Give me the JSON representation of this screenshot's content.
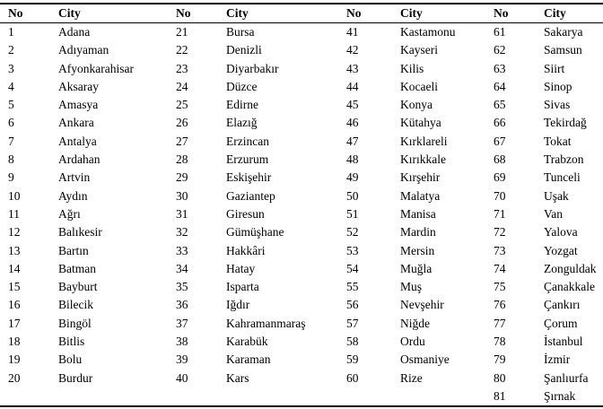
{
  "table": {
    "column_headers": [
      "No",
      "City",
      "No",
      "City",
      "No",
      "City",
      "No",
      "City"
    ],
    "rows": [
      [
        "1",
        "Adana",
        "21",
        "Bursa",
        "41",
        "Kastamonu",
        "61",
        "Sakarya"
      ],
      [
        "2",
        "Adıyaman",
        "22",
        "Denizli",
        "42",
        "Kayseri",
        "62",
        "Samsun"
      ],
      [
        "3",
        "Afyonkarahisar",
        "23",
        "Diyarbakır",
        "43",
        "Kilis",
        "63",
        "Siirt"
      ],
      [
        "4",
        "Aksaray",
        "24",
        "Düzce",
        "44",
        "Kocaeli",
        "64",
        "Sinop"
      ],
      [
        "5",
        "Amasya",
        "25",
        "Edirne",
        "45",
        "Konya",
        "65",
        "Sivas"
      ],
      [
        "6",
        "Ankara",
        "26",
        "Elazığ",
        "46",
        "Kütahya",
        "66",
        "Tekirdağ"
      ],
      [
        "7",
        "Antalya",
        "27",
        "Erzincan",
        "47",
        "Kırklareli",
        "67",
        "Tokat"
      ],
      [
        "8",
        "Ardahan",
        "28",
        "Erzurum",
        "48",
        "Kırıkkale",
        "68",
        "Trabzon"
      ],
      [
        "9",
        "Artvin",
        "29",
        "Eskişehir",
        "49",
        "Kırşehir",
        "69",
        "Tunceli"
      ],
      [
        "10",
        "Aydın",
        "30",
        "Gaziantep",
        "50",
        "Malatya",
        "70",
        "Uşak"
      ],
      [
        "11",
        "Ağrı",
        "31",
        "Giresun",
        "51",
        "Manisa",
        "71",
        "Van"
      ],
      [
        "12",
        "Balıkesir",
        "32",
        "Gümüşhane",
        "52",
        "Mardin",
        "72",
        "Yalova"
      ],
      [
        "13",
        "Bartın",
        "33",
        "Hakkâri",
        "53",
        "Mersin",
        "73",
        "Yozgat"
      ],
      [
        "14",
        "Batman",
        "34",
        "Hatay",
        "54",
        "Muğla",
        "74",
        "Zonguldak"
      ],
      [
        "15",
        "Bayburt",
        "35",
        "Isparta",
        "55",
        "Muş",
        "75",
        "Çanakkale"
      ],
      [
        "16",
        "Bilecik",
        "36",
        "Iğdır",
        "56",
        "Nevşehir",
        "76",
        "Çankırı"
      ],
      [
        "17",
        "Bingöl",
        "37",
        "Kahramanmaraş",
        "57",
        "Niğde",
        "77",
        "Çorum"
      ],
      [
        "18",
        "Bitlis",
        "38",
        "Karabük",
        "58",
        "Ordu",
        "78",
        "İstanbul"
      ],
      [
        "19",
        "Bolu",
        "39",
        "Karaman",
        "59",
        "Osmaniye",
        "79",
        "İzmir"
      ],
      [
        "20",
        "Burdur",
        "40",
        "Kars",
        "60",
        "Rize",
        "80",
        "Şanlıurfa"
      ],
      [
        "",
        "",
        "",
        "",
        "",
        "",
        "81",
        "Şırnak"
      ]
    ]
  }
}
